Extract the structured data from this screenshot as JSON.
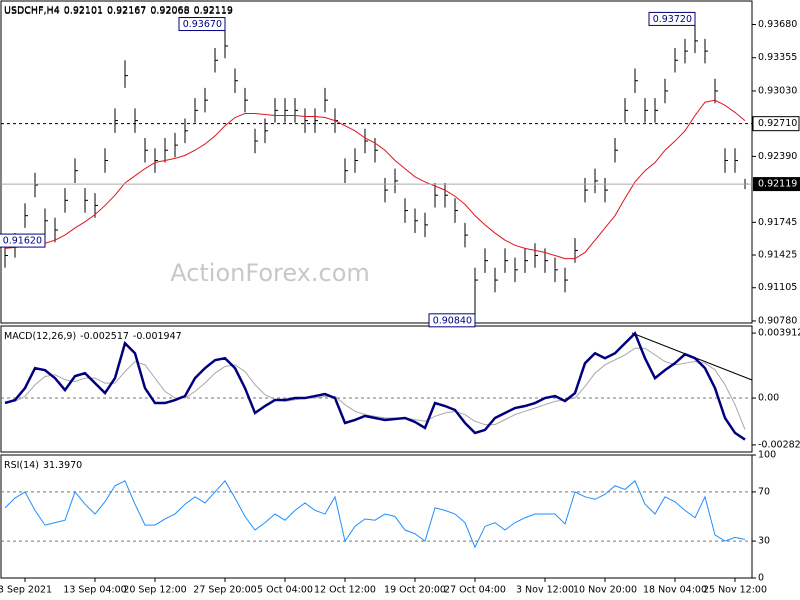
{
  "chart_data": [
    {
      "type": "ohlc",
      "title": "USDCHF,H4",
      "readout": [
        0.92101,
        0.92167,
        0.92068,
        0.92119
      ],
      "watermark": "ActionForex.com",
      "ylim": [
        0.9076,
        0.9391
      ],
      "yticks": [
        {
          "value": 0.9368,
          "label": "0.93680"
        },
        0.93355,
        {
          "value": 0.9303,
          "label": "0.93030"
        },
        {
          "value": 0.9239,
          "label": "0.92390"
        },
        0.91745,
        0.91425,
        0.91105,
        {
          "value": 0.9078,
          "label": "0.90780"
        }
      ],
      "color": "#000000",
      "highs": [
        0.9154,
        0.9164,
        0.9193,
        0.9223,
        0.9188,
        0.9179,
        0.9208,
        0.9237,
        0.9208,
        0.9203,
        0.9247,
        0.9286,
        0.9333,
        0.9286,
        0.9257,
        0.9247,
        0.9257,
        0.9262,
        0.9276,
        0.9296,
        0.9306,
        0.9345,
        0.9367,
        0.9325,
        0.9306,
        0.9266,
        0.9276,
        0.9296,
        0.9296,
        0.9296,
        0.9286,
        0.9286,
        0.9306,
        0.9286,
        0.9237,
        0.9247,
        0.9266,
        0.9257,
        0.9218,
        0.9227,
        0.9198,
        0.9188,
        0.9184,
        0.9213,
        0.9213,
        0.9198,
        0.9174,
        0.913,
        0.9149,
        0.913,
        0.9149,
        0.914,
        0.9149,
        0.9154,
        0.9149,
        0.914,
        0.913,
        0.9159,
        0.9218,
        0.9227,
        0.9218,
        0.9257,
        0.9296,
        0.9325,
        0.9296,
        0.9296,
        0.9315,
        0.9345,
        0.9354,
        0.9372,
        0.9354,
        0.9315,
        0.9247,
        0.9247,
        0.9217
      ],
      "lows": [
        0.913,
        0.914,
        0.9169,
        0.9199,
        0.9162,
        0.9155,
        0.9184,
        0.9213,
        0.9184,
        0.9179,
        0.9223,
        0.9262,
        0.9306,
        0.9262,
        0.9233,
        0.9223,
        0.9233,
        0.9238,
        0.9252,
        0.9272,
        0.9282,
        0.9321,
        0.9335,
        0.9301,
        0.9282,
        0.9242,
        0.9252,
        0.9272,
        0.9272,
        0.9272,
        0.9262,
        0.9262,
        0.9282,
        0.9262,
        0.9213,
        0.9223,
        0.9242,
        0.9233,
        0.9194,
        0.9203,
        0.9174,
        0.9164,
        0.916,
        0.9189,
        0.9189,
        0.9174,
        0.915,
        0.9084,
        0.9125,
        0.9106,
        0.9125,
        0.9116,
        0.9125,
        0.913,
        0.9125,
        0.9116,
        0.9106,
        0.9135,
        0.9194,
        0.9203,
        0.9194,
        0.9233,
        0.9272,
        0.9301,
        0.9272,
        0.9272,
        0.9291,
        0.9321,
        0.933,
        0.934,
        0.933,
        0.9291,
        0.9223,
        0.9223,
        0.9207
      ],
      "closes": [
        0.9142,
        0.9152,
        0.9181,
        0.9211,
        0.9176,
        0.9167,
        0.9196,
        0.9225,
        0.9196,
        0.9191,
        0.9235,
        0.9274,
        0.9318,
        0.9274,
        0.9245,
        0.9235,
        0.9245,
        0.925,
        0.9264,
        0.9284,
        0.9294,
        0.9333,
        0.9347,
        0.9313,
        0.9294,
        0.9254,
        0.9264,
        0.9284,
        0.9284,
        0.9284,
        0.9274,
        0.9274,
        0.9294,
        0.9274,
        0.9225,
        0.9235,
        0.9254,
        0.9245,
        0.9206,
        0.9215,
        0.9186,
        0.9176,
        0.9172,
        0.9201,
        0.9201,
        0.9186,
        0.9162,
        0.9118,
        0.9137,
        0.9118,
        0.9137,
        0.9128,
        0.9137,
        0.9142,
        0.9137,
        0.9128,
        0.9118,
        0.9147,
        0.9206,
        0.9215,
        0.9206,
        0.9245,
        0.9284,
        0.9313,
        0.9284,
        0.9284,
        0.9303,
        0.9333,
        0.9342,
        0.9352,
        0.9342,
        0.9303,
        0.9235,
        0.9235,
        0.92119
      ],
      "ma": {
        "color": "#e0141e",
        "values": [
          0.9149,
          0.915,
          0.9151,
          0.9152,
          0.9154,
          0.9157,
          0.9162,
          0.9169,
          0.9175,
          0.9182,
          0.9191,
          0.9201,
          0.9213,
          0.922,
          0.9227,
          0.9233,
          0.9235,
          0.9237,
          0.924,
          0.9245,
          0.9251,
          0.9259,
          0.9269,
          0.9277,
          0.9281,
          0.9281,
          0.928,
          0.9279,
          0.9279,
          0.9279,
          0.9278,
          0.9278,
          0.9277,
          0.9274,
          0.9269,
          0.9264,
          0.9257,
          0.9252,
          0.9245,
          0.9235,
          0.9227,
          0.9219,
          0.9214,
          0.921,
          0.9206,
          0.92,
          0.9192,
          0.9181,
          0.9172,
          0.9164,
          0.9157,
          0.9152,
          0.9149,
          0.9147,
          0.9145,
          0.9142,
          0.9139,
          0.9139,
          0.9145,
          0.9157,
          0.9169,
          0.9181,
          0.9198,
          0.9214,
          0.9225,
          0.9233,
          0.9245,
          0.9254,
          0.9264,
          0.9279,
          0.9292,
          0.9294,
          0.9289,
          0.9282,
          0.9274
        ]
      },
      "level": {
        "value": 0.9271,
        "label": "0.92710",
        "style": "dashed"
      },
      "last_price": 0.92119,
      "annotations": [
        {
          "value": 0.9367,
          "label": "0.93670",
          "kind": "high"
        },
        {
          "value": 0.9372,
          "label": "0.93720",
          "kind": "high"
        },
        {
          "value": 0.9162,
          "label": "0.91620",
          "kind": "low"
        },
        {
          "value": 0.9084,
          "label": "0.90840",
          "kind": "low"
        }
      ]
    },
    {
      "type": "macd",
      "title": "MACD(12,26,9)",
      "readout": [
        -0.002517,
        -0.001947
      ],
      "ylim": [
        -0.00325,
        0.00434
      ],
      "yticks": [
        0.003912,
        {
          "value": 0,
          "label": "0.00"
        },
        -0.002823
      ],
      "dashed_levels": [
        0
      ],
      "series": [
        {
          "color": "#00007f",
          "values": [
            -0.0003,
            -0.00012,
            0.0006,
            0.0018,
            0.00168,
            0.0012,
            0.00048,
            0.00132,
            0.0015,
            0.0009,
            0.0003,
            0.0012,
            0.0033,
            0.0027,
            0.0006,
            -0.0003,
            -0.0003,
            -0.00012,
            0.00012,
            0.0012,
            0.0018,
            0.00228,
            0.0024,
            0.0018,
            0.0006,
            -0.0009,
            -0.00048,
            -0.00012,
            -0.00012,
            0,
            0,
            0.00012,
            0.00024,
            0,
            -0.0015,
            -0.00132,
            -0.00108,
            -0.0012,
            -0.00132,
            -0.00126,
            -0.0012,
            -0.00144,
            -0.0018,
            -0.0003,
            -0.00048,
            -0.00072,
            -0.0015,
            -0.0021,
            -0.00192,
            -0.0012,
            -0.0009,
            -0.0006,
            -0.00048,
            -0.0003,
            0,
            0.00012,
            -0.00018,
            0.0003,
            0.0021,
            0.0027,
            0.0024,
            0.0027,
            0.0033,
            0.0039,
            0.0024,
            0.0012,
            0.00168,
            0.0021,
            0.00264,
            0.0024,
            0.0018,
            0.0006,
            -0.0012,
            -0.0021,
            -0.0025
          ]
        },
        {
          "color": "#a8a8a8",
          "values": [
            -0.0002,
            -0.0002,
            0.0001,
            0.0008,
            0.0013,
            0.0014,
            0.0011,
            0.001,
            0.0012,
            0.0012,
            0.0009,
            0.0009,
            0.0016,
            0.0022,
            0.002,
            0.0012,
            0.0004,
            0,
            0,
            0.0004,
            0.0009,
            0.0015,
            0.0019,
            0.002,
            0.0016,
            0.0008,
            0.0002,
            -0.0001,
            -0.0002,
            -0.0001,
            0,
            0,
            0.0001,
            0.0001,
            -0.0004,
            -0.0008,
            -0.001,
            -0.0011,
            -0.0012,
            -0.0012,
            -0.0012,
            -0.0013,
            -0.0014,
            -0.0011,
            -0.0009,
            -0.0008,
            -0.001,
            -0.0014,
            -0.0016,
            -0.0016,
            -0.0013,
            -0.001,
            -0.0008,
            -0.0006,
            -0.0004,
            -0.0002,
            -0.0001,
            0,
            0.0007,
            0.0015,
            0.002,
            0.0023,
            0.0026,
            0.003,
            0.003,
            0.0026,
            0.0022,
            0.002,
            0.0021,
            0.0022,
            0.0021,
            0.0017,
            0.0008,
            -0.0004,
            -0.0019
          ]
        }
      ]
    },
    {
      "type": "rsi",
      "title": "RSI(14)",
      "readout": [
        "31.3970"
      ],
      "ylim": [
        0,
        100
      ],
      "yticks": [
        100,
        70,
        30,
        0
      ],
      "dashed_levels": [
        70,
        30
      ],
      "series": [
        {
          "color": "#1e8fff",
          "values": [
            57,
            65,
            70,
            55,
            43,
            45,
            47,
            70,
            60,
            52,
            62,
            75,
            79,
            60,
            43,
            43,
            48,
            52,
            60,
            66,
            61,
            70,
            79,
            65,
            50,
            39,
            45,
            52,
            47,
            55,
            61,
            55,
            52,
            66,
            30,
            42,
            48,
            47,
            52,
            50,
            39,
            36,
            30,
            57,
            55,
            52,
            45,
            25,
            42,
            45,
            39,
            45,
            49,
            52,
            52,
            52,
            44,
            70,
            66,
            64,
            68,
            75,
            72,
            79,
            60,
            52,
            66,
            62,
            55,
            49,
            66,
            35,
            30,
            33,
            31.397
          ]
        }
      ],
      "categories": [
        null,
        null,
        "3 Sep 2021",
        null,
        null,
        null,
        null,
        null,
        null,
        "13 Sep 04:00",
        null,
        null,
        null,
        null,
        null,
        "20 Sep 12:00",
        null,
        null,
        null,
        null,
        null,
        null,
        "27 Sep 20:00",
        null,
        null,
        null,
        null,
        null,
        "5 Oct 04:00",
        null,
        null,
        null,
        null,
        null,
        "12 Oct 12:00",
        null,
        null,
        null,
        null,
        null,
        null,
        "19 Oct 20:00",
        null,
        null,
        null,
        null,
        null,
        "27 Oct 04:00",
        null,
        null,
        null,
        null,
        null,
        null,
        "3 Nov 12:00",
        null,
        null,
        null,
        null,
        null,
        "10 Nov 20:00",
        null,
        null,
        null,
        null,
        null,
        null,
        "18 Nov 04:00",
        null,
        null,
        null,
        null,
        null,
        "25 Nov 12:00",
        null
      ]
    }
  ]
}
